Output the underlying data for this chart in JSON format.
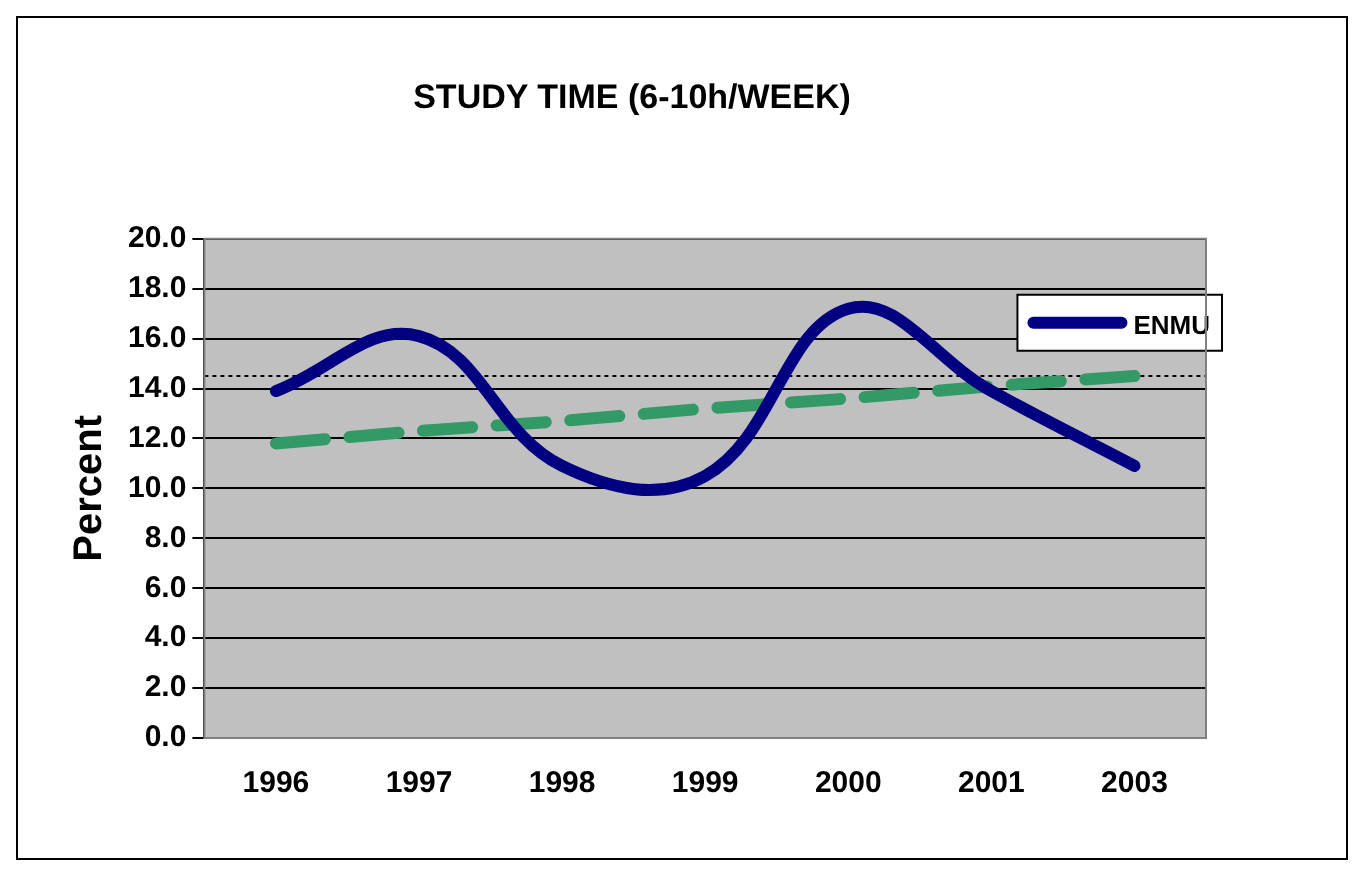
{
  "chart_data": {
    "type": "line",
    "title": "STUDY TIME (6-10h/WEEK)",
    "ylabel": "Percent",
    "categories": [
      "1996",
      "1997",
      "1998",
      "1999",
      "2000",
      "2001",
      "2003"
    ],
    "series": [
      {
        "name": "ENMU",
        "color": "#000080",
        "values": [
          13.9,
          16.1,
          10.9,
          10.5,
          17.2,
          13.9,
          10.9
        ]
      },
      {
        "type": "line",
        "color": "#339966",
        "line_style": "dashed",
        "values": [
          11.8,
          12.3,
          12.7,
          13.2,
          13.6,
          14.1,
          14.5
        ]
      }
    ],
    "ylim": [
      0,
      20
    ],
    "yticks": [
      {
        "value": 0,
        "label": "0.0"
      },
      {
        "value": 2,
        "label": "2.0"
      },
      {
        "value": 4,
        "label": "4.0"
      },
      {
        "value": 6,
        "label": "6.0"
      },
      {
        "value": 8,
        "label": "8.0"
      },
      {
        "value": 10,
        "label": "10.0"
      },
      {
        "value": 12,
        "label": "12.0"
      },
      {
        "value": 14,
        "label": "14.0"
      },
      {
        "value": 16,
        "label": "16.0"
      },
      {
        "value": 18,
        "label": "18.0"
      },
      {
        "value": 20,
        "label": "20.0"
      }
    ],
    "ref_lines": [
      {
        "axis": "y",
        "value": 14.5,
        "color": "#000000",
        "line_style": "dotted"
      }
    ],
    "grid": "y",
    "legend": "top right",
    "marker": "none",
    "line_style": "solid"
  }
}
